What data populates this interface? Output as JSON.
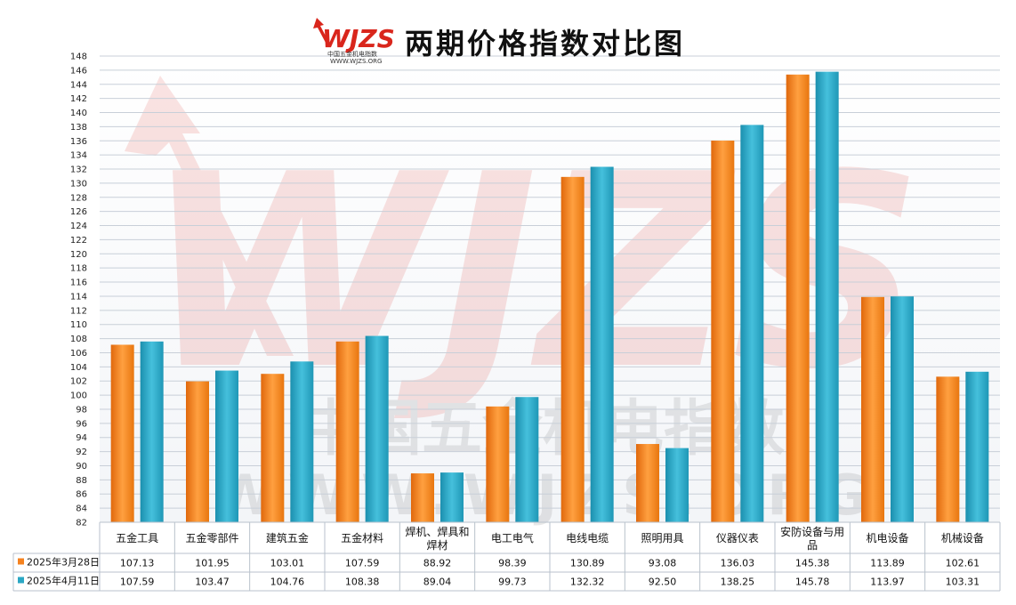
{
  "logo": {
    "text": "WJZS",
    "subtitle": "中国五金机电指数",
    "url": "WWW.WJZS.ORG"
  },
  "watermark": {
    "main": "WJZS",
    "cn": "中国五金机电指数",
    "url": "WWW.WJZS.ORG"
  },
  "colors": {
    "series1": "#f5821f",
    "series2": "#2aa7c4",
    "grid": "#c8cfd8"
  },
  "chart_data": {
    "type": "bar",
    "title": "两期价格指数对比图",
    "ylim": [
      82,
      148
    ],
    "yticks": [
      82,
      84,
      86,
      88,
      90,
      92,
      94,
      96,
      98,
      100,
      102,
      104,
      106,
      108,
      110,
      112,
      114,
      116,
      118,
      120,
      122,
      124,
      126,
      128,
      130,
      132,
      134,
      136,
      138,
      140,
      142,
      144,
      146,
      148
    ],
    "grid": true,
    "legend": "data-table",
    "categories": [
      [
        "五金工具"
      ],
      [
        "五金零部件"
      ],
      [
        "建筑五金"
      ],
      [
        "五金材料"
      ],
      [
        "焊机、焊具和",
        "焊材"
      ],
      [
        "电工电气"
      ],
      [
        "电线电缆"
      ],
      [
        "照明用具"
      ],
      [
        "仪器仪表"
      ],
      [
        "安防设备与用",
        "品"
      ],
      [
        "机电设备"
      ],
      [
        "机械设备"
      ]
    ],
    "series": [
      {
        "name": "2025年3月28日",
        "values": [
          107.13,
          101.95,
          103.01,
          107.59,
          88.92,
          98.39,
          130.89,
          93.08,
          136.03,
          145.38,
          113.89,
          102.61
        ]
      },
      {
        "name": "2025年4月11日",
        "values": [
          107.59,
          103.47,
          104.76,
          108.38,
          89.04,
          99.73,
          132.32,
          92.5,
          138.25,
          145.78,
          113.97,
          103.31
        ]
      }
    ]
  }
}
